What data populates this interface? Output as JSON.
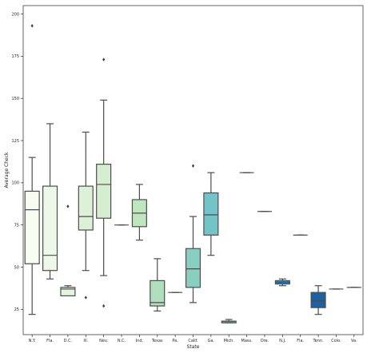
{
  "chart_data": {
    "type": "box",
    "xlabel": "State",
    "ylabel": "Average Check",
    "ylim": [
      10,
      205
    ],
    "yticks": [
      25,
      50,
      75,
      100,
      125,
      150,
      175,
      200
    ],
    "grid": false,
    "boxes": [
      {
        "label": "N.Y.",
        "whislo": 22,
        "q1": 52,
        "med": 84,
        "q3": 95,
        "whishi": 115,
        "fliers": [
          193
        ],
        "color": "#f7fcf0"
      },
      {
        "label": "Fla.",
        "whislo": 43,
        "q1": 48,
        "med": 57,
        "q3": 98,
        "whishi": 135,
        "fliers": [],
        "color": "#eef8e8"
      },
      {
        "label": "D.C.",
        "whislo": 33,
        "q1": 33,
        "med": 37,
        "q3": 38,
        "whishi": 39,
        "fliers": [
          86
        ],
        "color": "#e6f5e0"
      },
      {
        "label": "Ill.",
        "whislo": 48,
        "q1": 72,
        "med": 80,
        "q3": 98,
        "whishi": 130,
        "fliers": [
          32
        ],
        "color": "#ddf1d7"
      },
      {
        "label": "Nev.",
        "whislo": 45,
        "q1": 79,
        "med": 99,
        "q3": 111,
        "whishi": 149,
        "fliers": [
          173,
          27
        ],
        "color": "#d5eecf"
      },
      {
        "label": "N.C.",
        "whislo": 75,
        "q1": 75,
        "med": 75,
        "q3": 75,
        "whishi": 75,
        "fliers": [],
        "color": "#ccebc6"
      },
      {
        "label": "Ind.",
        "whislo": 66,
        "q1": 74,
        "med": 82,
        "q3": 90,
        "whishi": 99,
        "fliers": [],
        "color": "#bfe6bf"
      },
      {
        "label": "Texas",
        "whislo": 24,
        "q1": 27,
        "med": 29,
        "q3": 42,
        "whishi": 55,
        "fliers": [],
        "color": "#afdfbc"
      },
      {
        "label": "Pa.",
        "whislo": 35,
        "q1": 35,
        "med": 35,
        "q3": 35,
        "whishi": 35,
        "fliers": [],
        "color": "#9fd9bb"
      },
      {
        "label": "Calif.",
        "whislo": 29,
        "q1": 38,
        "med": 49,
        "q3": 61,
        "whishi": 80,
        "fliers": [
          110
        ],
        "color": "#88cfc2"
      },
      {
        "label": "Ga.",
        "whislo": 57,
        "q1": 69,
        "med": 81,
        "q3": 94,
        "whishi": 106,
        "fliers": [],
        "color": "#73c4c8"
      },
      {
        "label": "Mich.",
        "whislo": 17,
        "q1": 17,
        "med": 18,
        "q3": 18,
        "whishi": 19,
        "fliers": [],
        "color": "#5eb6cd"
      },
      {
        "label": "Mass.",
        "whislo": 106,
        "q1": 106,
        "med": 106,
        "q3": 106,
        "whishi": 106,
        "fliers": [],
        "color": "#4ba6ce"
      },
      {
        "label": "Ore.",
        "whislo": 83,
        "q1": 83,
        "med": 83,
        "q3": 83,
        "whishi": 83,
        "fliers": [],
        "color": "#3c95c4"
      },
      {
        "label": "N.J.",
        "whislo": 39,
        "q1": 40,
        "med": 41,
        "q3": 42,
        "whishi": 43,
        "fliers": [],
        "color": "#2f83bb"
      },
      {
        "label": "Fla.",
        "whislo": 69,
        "q1": 69,
        "med": 69,
        "q3": 69,
        "whishi": 69,
        "fliers": [],
        "color": "#2472b0"
      },
      {
        "label": "Tenn.",
        "whislo": 22,
        "q1": 26,
        "med": 30,
        "q3": 35,
        "whishi": 39,
        "fliers": [],
        "color": "#1b62a4"
      },
      {
        "label": "Colo.",
        "whislo": 37,
        "q1": 37,
        "med": 37,
        "q3": 37,
        "whishi": 37,
        "fliers": [],
        "color": "#105196"
      },
      {
        "label": "Va.",
        "whislo": 38,
        "q1": 38,
        "med": 38,
        "q3": 38,
        "whishi": 38,
        "fliers": [],
        "color": "#08437f"
      }
    ]
  }
}
